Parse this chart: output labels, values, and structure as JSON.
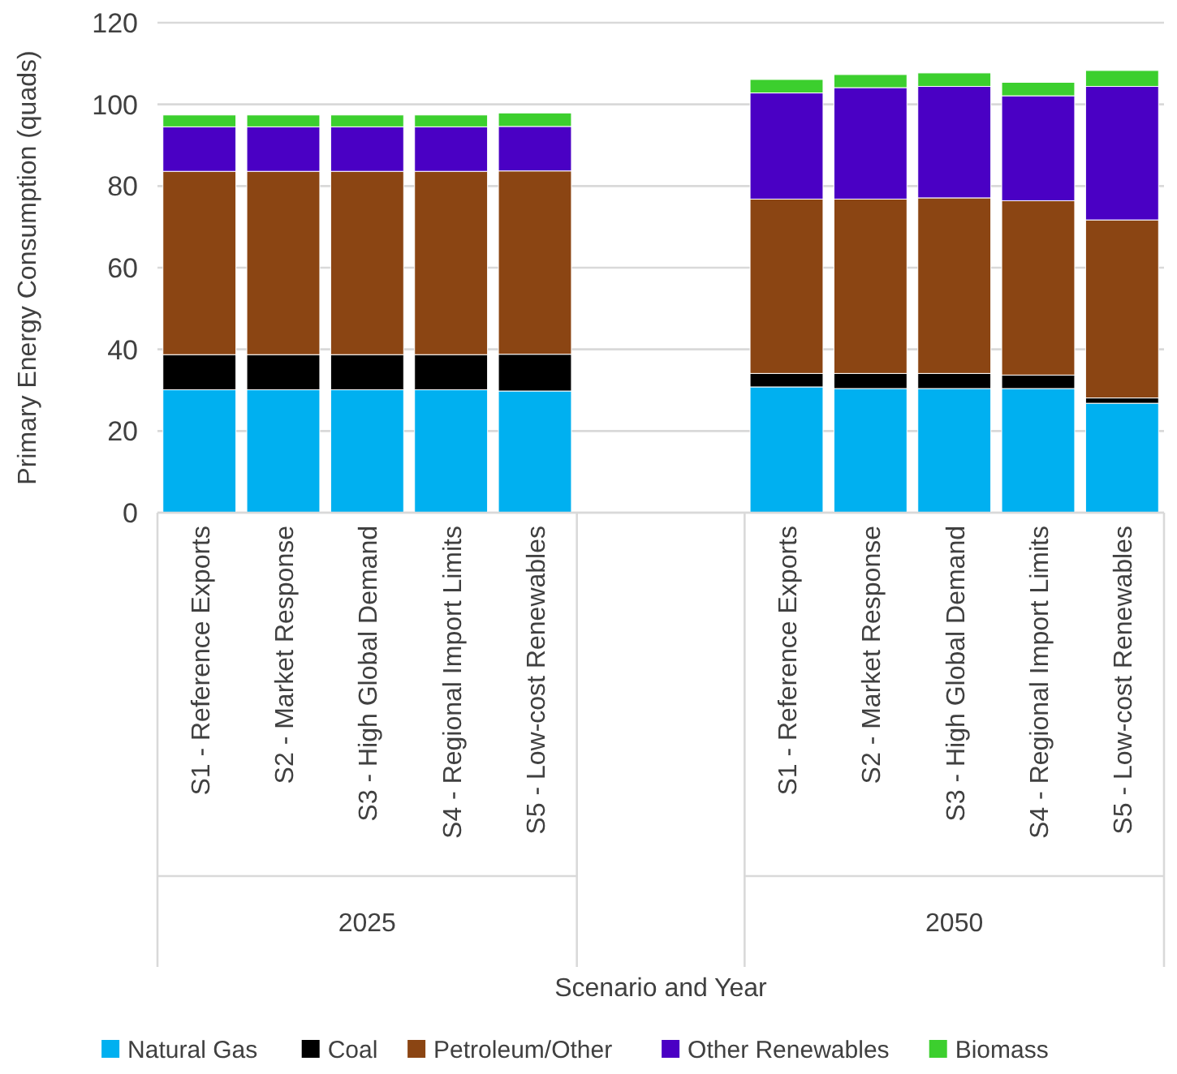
{
  "chart_data": {
    "type": "bar",
    "stacked": true,
    "ylabel": "Primary Energy Consumption (quads)",
    "categories": [
      "S1 - Reference Exports",
      "S2 - Market Response",
      "S3 - High Global Demand",
      "S4 - Regional Import Limits",
      "S5 - Low-cost Renewables",
      null,
      null,
      "S1 - Reference Exports",
      "S2 - Market Response",
      "S3 - High Global Demand",
      "S4 - Regional Import Limits",
      "S5 - Low-cost Renewables"
    ],
    "annotations": [
      "2025",
      "2050",
      "Scenario and Year"
    ],
    "series": [
      {
        "name": "Natural Gas",
        "color": "#00b0f0",
        "values": [
          30.1,
          30.1,
          30.1,
          30.1,
          29.8,
          null,
          null,
          30.8,
          30.4,
          30.4,
          30.4,
          26.8
        ]
      },
      {
        "name": "Coal",
        "color": "#000000",
        "values": [
          8.6,
          8.6,
          8.6,
          8.6,
          9.0,
          null,
          null,
          3.3,
          3.7,
          3.7,
          3.3,
          1.3
        ]
      },
      {
        "name": "Petroleum/Other",
        "color": "#8b4513",
        "values": [
          44.9,
          44.9,
          44.9,
          44.9,
          44.9,
          null,
          null,
          42.7,
          42.7,
          43.0,
          42.7,
          43.6
        ]
      },
      {
        "name": "Other Renewables",
        "color": "#4a00c4",
        "values": [
          10.9,
          10.9,
          10.9,
          10.9,
          10.9,
          null,
          null,
          26.0,
          27.3,
          27.3,
          25.7,
          32.7
        ]
      },
      {
        "name": "Biomass",
        "color": "#3ccf2e",
        "values": [
          2.9,
          2.9,
          2.9,
          2.9,
          3.3,
          null,
          null,
          3.3,
          3.2,
          3.3,
          3.3,
          3.9
        ]
      }
    ],
    "ylim": [
      0,
      120
    ],
    "yticks": [
      0,
      20,
      40,
      60,
      80,
      100,
      120
    ],
    "grid": "y",
    "legend": "bottom"
  }
}
